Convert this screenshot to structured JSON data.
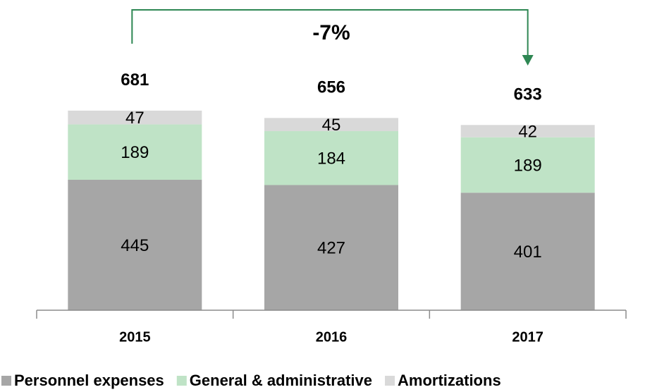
{
  "chart_data": {
    "type": "stacked_bar",
    "categories": [
      "2015",
      "2016",
      "2017"
    ],
    "series": [
      {
        "name": "Personnel expenses",
        "color": "#a6a6a6",
        "values": [
          445,
          427,
          401
        ]
      },
      {
        "name": "General & administrative",
        "color": "#bfe3c6",
        "values": [
          189,
          184,
          189
        ]
      },
      {
        "name": "Amortizations",
        "color": "#d9d9d9",
        "values": [
          47,
          45,
          42
        ]
      }
    ],
    "totals": [
      681,
      656,
      633
    ],
    "annotation": "-7%",
    "annotation_color": "#2e8753",
    "ylim": [
      0,
      700
    ],
    "legend": "bottom"
  }
}
